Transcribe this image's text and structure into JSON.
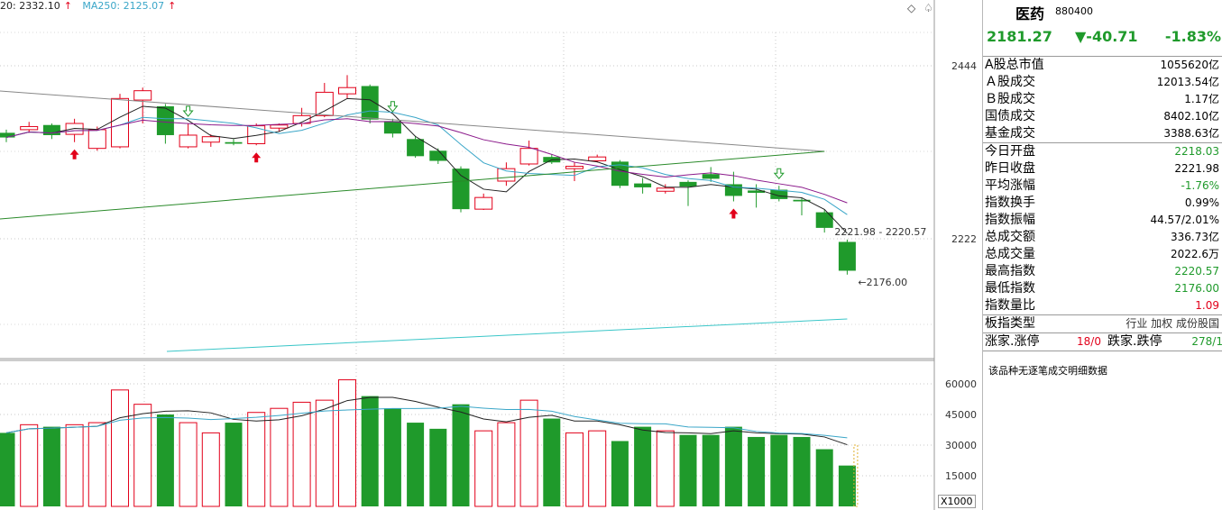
{
  "legend": {
    "ma20_label": "20: 2332.10",
    "ma20_arrow": "↑",
    "ma250_label": "MA250: 2125.07",
    "ma250_arrow": "↑"
  },
  "toolbar": {
    "diamond_icon": "◇",
    "club_icon": "♤"
  },
  "price_axis": [
    "2444",
    "2222"
  ],
  "volume_axis": [
    "60000",
    "45000",
    "30000",
    "15000"
  ],
  "volume_unit": "X1000",
  "annotations": {
    "high_label": "2221.98 - 2220.57",
    "low_label": "2176.00"
  },
  "panel": {
    "name": "医药",
    "code": "880400",
    "price": "2181.27",
    "change": "▼-40.71",
    "change_pct": "-1.83%",
    "rows": [
      {
        "label": "A股总市值",
        "value": "1055620亿",
        "color": "#000"
      },
      {
        "label": "Ａ股成交",
        "value": "12013.54亿",
        "color": "#000"
      },
      {
        "label": "Ｂ股成交",
        "value": "1.17亿",
        "color": "#000"
      },
      {
        "label": "国债成交",
        "value": "8402.10亿",
        "color": "#000"
      },
      {
        "label": "基金成交",
        "value": "3388.63亿",
        "color": "#000"
      },
      {
        "label": "今日开盘",
        "value": "2218.03",
        "color": "#1f9a2b"
      },
      {
        "label": "昨日收盘",
        "value": "2221.98",
        "color": "#000"
      },
      {
        "label": "平均涨幅",
        "value": "-1.76%",
        "color": "#1f9a2b"
      },
      {
        "label": "指数换手",
        "value": "0.99%",
        "color": "#000"
      },
      {
        "label": "指数振幅",
        "value": "44.57/2.01%",
        "color": "#000"
      },
      {
        "label": "总成交额",
        "value": "336.73亿",
        "color": "#000"
      },
      {
        "label": "总成交量",
        "value": "2022.6万",
        "color": "#000"
      },
      {
        "label": "最高指数",
        "value": "2220.57",
        "color": "#1f9a2b"
      },
      {
        "label": "最低指数",
        "value": "2176.00",
        "color": "#1f9a2b"
      },
      {
        "label": "指数量比",
        "value": "1.09",
        "color": "#e2001a"
      }
    ],
    "type_label": "板指类型",
    "type_value": "行业 加权 成份股国",
    "limit_up_label": "涨家.涨停",
    "limit_up_value": "18/0",
    "limit_down_label": "跌家.跌停",
    "limit_down_value": "278/1",
    "note": "该品种无逐笔成交明细数据"
  },
  "chart_data": {
    "type": "candlestick",
    "price_ticks": [
      2444,
      2222
    ],
    "volume_ticks": [
      60000,
      45000,
      30000,
      15000
    ],
    "candles": [
      {
        "o": 2358,
        "c": 2352,
        "h": 2362,
        "l": 2346,
        "v": 36000
      },
      {
        "o": 2362,
        "c": 2366,
        "h": 2372,
        "l": 2358,
        "v": 40000
      },
      {
        "o": 2368,
        "c": 2355,
        "h": 2370,
        "l": 2350,
        "v": 39000
      },
      {
        "o": 2356,
        "c": 2370,
        "h": 2376,
        "l": 2346,
        "v": 40000
      },
      {
        "o": 2338,
        "c": 2362,
        "h": 2366,
        "l": 2335,
        "v": 41000
      },
      {
        "o": 2340,
        "c": 2402,
        "h": 2408,
        "l": 2338,
        "v": 57000
      },
      {
        "o": 2400,
        "c": 2412,
        "h": 2416,
        "l": 2370,
        "v": 50000
      },
      {
        "o": 2392,
        "c": 2355,
        "h": 2395,
        "l": 2344,
        "v": 45000
      },
      {
        "o": 2340,
        "c": 2355,
        "h": 2370,
        "l": 2338,
        "v": 41000
      },
      {
        "o": 2346,
        "c": 2353,
        "h": 2356,
        "l": 2340,
        "v": 36000
      },
      {
        "o": 2346,
        "c": 2344,
        "h": 2350,
        "l": 2342,
        "v": 41000
      },
      {
        "o": 2344,
        "c": 2367,
        "h": 2370,
        "l": 2342,
        "v": 46000
      },
      {
        "o": 2364,
        "c": 2368,
        "h": 2370,
        "l": 2360,
        "v": 48000
      },
      {
        "o": 2370,
        "c": 2380,
        "h": 2390,
        "l": 2366,
        "v": 51000
      },
      {
        "o": 2380,
        "c": 2410,
        "h": 2422,
        "l": 2378,
        "v": 52000
      },
      {
        "o": 2408,
        "c": 2416,
        "h": 2432,
        "l": 2402,
        "v": 62000
      },
      {
        "o": 2418,
        "c": 2375,
        "h": 2420,
        "l": 2370,
        "v": 54000
      },
      {
        "o": 2373,
        "c": 2357,
        "h": 2376,
        "l": 2352,
        "v": 48000
      },
      {
        "o": 2350,
        "c": 2328,
        "h": 2354,
        "l": 2326,
        "v": 41000
      },
      {
        "o": 2335,
        "c": 2322,
        "h": 2338,
        "l": 2318,
        "v": 38000
      },
      {
        "o": 2312,
        "c": 2260,
        "h": 2315,
        "l": 2256,
        "v": 50000
      },
      {
        "o": 2260,
        "c": 2275,
        "h": 2280,
        "l": 2259,
        "v": 37000
      },
      {
        "o": 2296,
        "c": 2312,
        "h": 2320,
        "l": 2290,
        "v": 41000
      },
      {
        "o": 2318,
        "c": 2338,
        "h": 2348,
        "l": 2316,
        "v": 52000
      },
      {
        "o": 2327,
        "c": 2320,
        "h": 2330,
        "l": 2318,
        "v": 43000
      },
      {
        "o": 2312,
        "c": 2315,
        "h": 2320,
        "l": 2296,
        "v": 36000
      },
      {
        "o": 2322,
        "c": 2327,
        "h": 2330,
        "l": 2320,
        "v": 37000
      },
      {
        "o": 2321,
        "c": 2290,
        "h": 2323,
        "l": 2287,
        "v": 32000
      },
      {
        "o": 2293,
        "c": 2288,
        "h": 2300,
        "l": 2280,
        "v": 39000
      },
      {
        "o": 2283,
        "c": 2287,
        "h": 2292,
        "l": 2280,
        "v": 37000
      },
      {
        "o": 2295,
        "c": 2289,
        "h": 2297,
        "l": 2264,
        "v": 35000
      },
      {
        "o": 2305,
        "c": 2299,
        "h": 2314,
        "l": 2295,
        "v": 35000
      },
      {
        "o": 2292,
        "c": 2277,
        "h": 2308,
        "l": 2270,
        "v": 39000
      },
      {
        "o": 2284,
        "c": 2281,
        "h": 2292,
        "l": 2262,
        "v": 34000
      },
      {
        "o": 2285,
        "c": 2273,
        "h": 2290,
        "l": 2270,
        "v": 35000
      },
      {
        "o": 2272,
        "c": 2270,
        "h": 2274,
        "l": 2252,
        "v": 34000
      },
      {
        "o": 2256,
        "c": 2236,
        "h": 2260,
        "l": 2230,
        "v": 28000
      },
      {
        "o": 2218,
        "c": 2181,
        "h": 2221,
        "l": 2176,
        "v": 20000
      }
    ]
  }
}
